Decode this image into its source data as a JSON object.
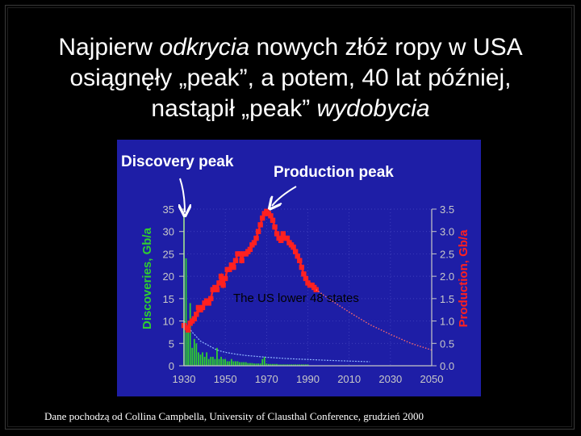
{
  "slide": {
    "title_line1_pre": "Najpierw ",
    "title_line1_em": "odkrycia",
    "title_line1_post": " nowych złóż ropy w USA",
    "title_line2": "osiągnęły „peak”, a potem, 40 lat później,",
    "title_line3_pre": "nastąpił „peak” ",
    "title_line3_em": "wydobycia",
    "source_note": "Dane pochodzą od Collina Campbella, University of Clausthal Conference, grudzień 2000"
  },
  "colors": {
    "chart_background": "#1e1ea6",
    "discovery_bars": "#2fcf2f",
    "production_series": "#ff2020",
    "production_forecast": "#ff6a6a",
    "discovery_trend": "#8fb4ff",
    "axis_text": "#c8c8c8",
    "discovery_axis_label": "#2fcf2f",
    "production_axis_label": "#ff2020"
  },
  "chart_data": {
    "type": "bar",
    "annotations": {
      "discovery_peak": "Discovery peak",
      "production_peak": "Production peak",
      "region": "The US lower 48 states"
    },
    "x_ticks": [
      1930,
      1950,
      1970,
      1990,
      2010,
      2030,
      2050
    ],
    "xlim": [
      1930,
      2050
    ],
    "left_axis": {
      "label": "Discoveries, Gb/a",
      "ticks": [
        0,
        5,
        10,
        15,
        20,
        25,
        30,
        35
      ],
      "ylim": [
        0,
        35
      ]
    },
    "right_axis": {
      "label": "Production, Gb/a",
      "ticks": [
        "0.0",
        "0.5",
        "1.0",
        "1.5",
        "2.0",
        "2.5",
        "3.0",
        "3.5"
      ],
      "ylim": [
        0,
        3.5
      ]
    },
    "series": [
      {
        "kind": "bars",
        "axis": "left",
        "x": [
          1930,
          1931,
          1932,
          1933,
          1934,
          1935,
          1936,
          1937,
          1938,
          1939,
          1940,
          1941,
          1942,
          1943,
          1944,
          1945,
          1946,
          1947,
          1948,
          1949,
          1950,
          1951,
          1952,
          1953,
          1954,
          1955,
          1956,
          1957,
          1958,
          1959,
          1960,
          1961,
          1962,
          1963,
          1964,
          1965,
          1966,
          1967,
          1968,
          1969,
          1970,
          1971,
          1972,
          1973,
          1974,
          1975,
          1976,
          1977,
          1978,
          1979,
          1980,
          1981,
          1982,
          1983,
          1984,
          1985,
          1986,
          1987,
          1988,
          1989,
          1990
        ],
        "values": [
          33.5,
          24,
          8,
          14,
          4,
          6,
          5,
          3,
          2.5,
          3,
          2,
          3,
          1.5,
          2,
          2,
          1.5,
          4,
          1.5,
          2,
          1.5,
          1.5,
          1,
          1,
          1.5,
          1,
          1,
          1,
          0.8,
          0.8,
          0.8,
          0.8,
          0.6,
          0.6,
          0.6,
          0.5,
          0.5,
          0.5,
          0.5,
          1.5,
          2,
          0.5,
          0.4,
          0.4,
          0.4,
          0.4,
          0.4,
          0.3,
          0.3,
          0.3,
          0.3,
          0.3,
          0.3,
          0.3,
          0.3,
          0.3,
          0.3,
          0.3,
          0.3,
          0.3,
          0.3,
          0.3
        ]
      },
      {
        "kind": "trend",
        "axis": "left",
        "x": [
          1930,
          1934,
          1938,
          1942,
          1946,
          1950,
          1955,
          1960,
          1970,
          1980,
          1990,
          2000,
          2010,
          2020
        ],
        "values": [
          10,
          7.5,
          5.5,
          4.5,
          3.5,
          3,
          2.6,
          2.3,
          1.9,
          1.6,
          1.4,
          1.2,
          1.05,
          0.9
        ]
      },
      {
        "kind": "line",
        "axis": "right",
        "x": [
          1930,
          1931,
          1932,
          1933,
          1934,
          1935,
          1936,
          1937,
          1938,
          1939,
          1940,
          1941,
          1942,
          1943,
          1944,
          1945,
          1946,
          1947,
          1948,
          1949,
          1950,
          1951,
          1952,
          1953,
          1954,
          1955,
          1956,
          1957,
          1958,
          1959,
          1960,
          1961,
          1962,
          1963,
          1964,
          1965,
          1966,
          1967,
          1968,
          1969,
          1970,
          1971,
          1972,
          1973,
          1974,
          1975,
          1976,
          1977,
          1978,
          1979,
          1980,
          1981,
          1982,
          1983,
          1984,
          1985,
          1986,
          1987,
          1988,
          1989,
          1990,
          1991,
          1992,
          1993,
          1994
        ],
        "values": [
          0.9,
          0.85,
          0.8,
          0.95,
          1.0,
          1.05,
          1.15,
          1.3,
          1.25,
          1.3,
          1.4,
          1.45,
          1.4,
          1.5,
          1.7,
          1.75,
          1.7,
          1.85,
          2.0,
          1.8,
          1.95,
          2.15,
          2.15,
          2.25,
          2.2,
          2.35,
          2.5,
          2.5,
          2.35,
          2.5,
          2.5,
          2.55,
          2.6,
          2.7,
          2.75,
          2.85,
          3.0,
          3.15,
          3.3,
          3.4,
          3.45,
          3.4,
          3.35,
          3.25,
          3.1,
          2.95,
          2.85,
          2.8,
          2.95,
          2.85,
          2.85,
          2.75,
          2.7,
          2.65,
          2.55,
          2.45,
          2.35,
          2.2,
          2.05,
          1.95,
          1.85,
          1.8,
          1.8,
          1.75,
          1.7
        ]
      },
      {
        "kind": "forecast",
        "axis": "right",
        "x": [
          1994,
          2000,
          2010,
          2020,
          2030,
          2040,
          2050
        ],
        "values": [
          1.7,
          1.5,
          1.2,
          0.92,
          0.7,
          0.5,
          0.35
        ]
      }
    ]
  }
}
